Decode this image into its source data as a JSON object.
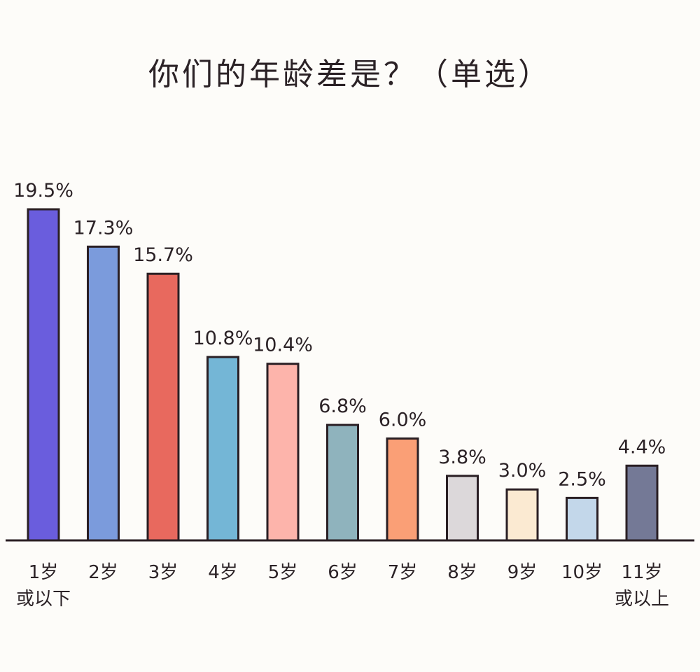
{
  "chart_data": {
    "type": "bar",
    "title": "你们的年龄差是？（单选）",
    "categories": [
      [
        "1岁",
        "或以下"
      ],
      [
        "2岁"
      ],
      [
        "3岁"
      ],
      [
        "4岁"
      ],
      [
        "5岁"
      ],
      [
        "6岁"
      ],
      [
        "7岁"
      ],
      [
        "8岁"
      ],
      [
        "9岁"
      ],
      [
        "10岁"
      ],
      [
        "11岁",
        "或以上"
      ]
    ],
    "values": [
      19.5,
      17.3,
      15.7,
      10.8,
      10.4,
      6.8,
      6.0,
      3.8,
      3.0,
      2.5,
      4.4
    ],
    "value_labels": [
      "19.5%",
      "17.3%",
      "15.7%",
      "10.8%",
      "10.4%",
      "6.8%",
      "6.0%",
      "3.8%",
      "3.0%",
      "2.5%",
      "4.4%"
    ],
    "unit": "%",
    "ylim": [
      0,
      19.5
    ],
    "grid": false,
    "colors": [
      "#6a5ddd",
      "#7b9bdc",
      "#e8695e",
      "#74b6d6",
      "#fdb4ab",
      "#8fb3bd",
      "#fa9f76",
      "#dcd8da",
      "#fbead2",
      "#c3d7ea",
      "#747996"
    ]
  }
}
